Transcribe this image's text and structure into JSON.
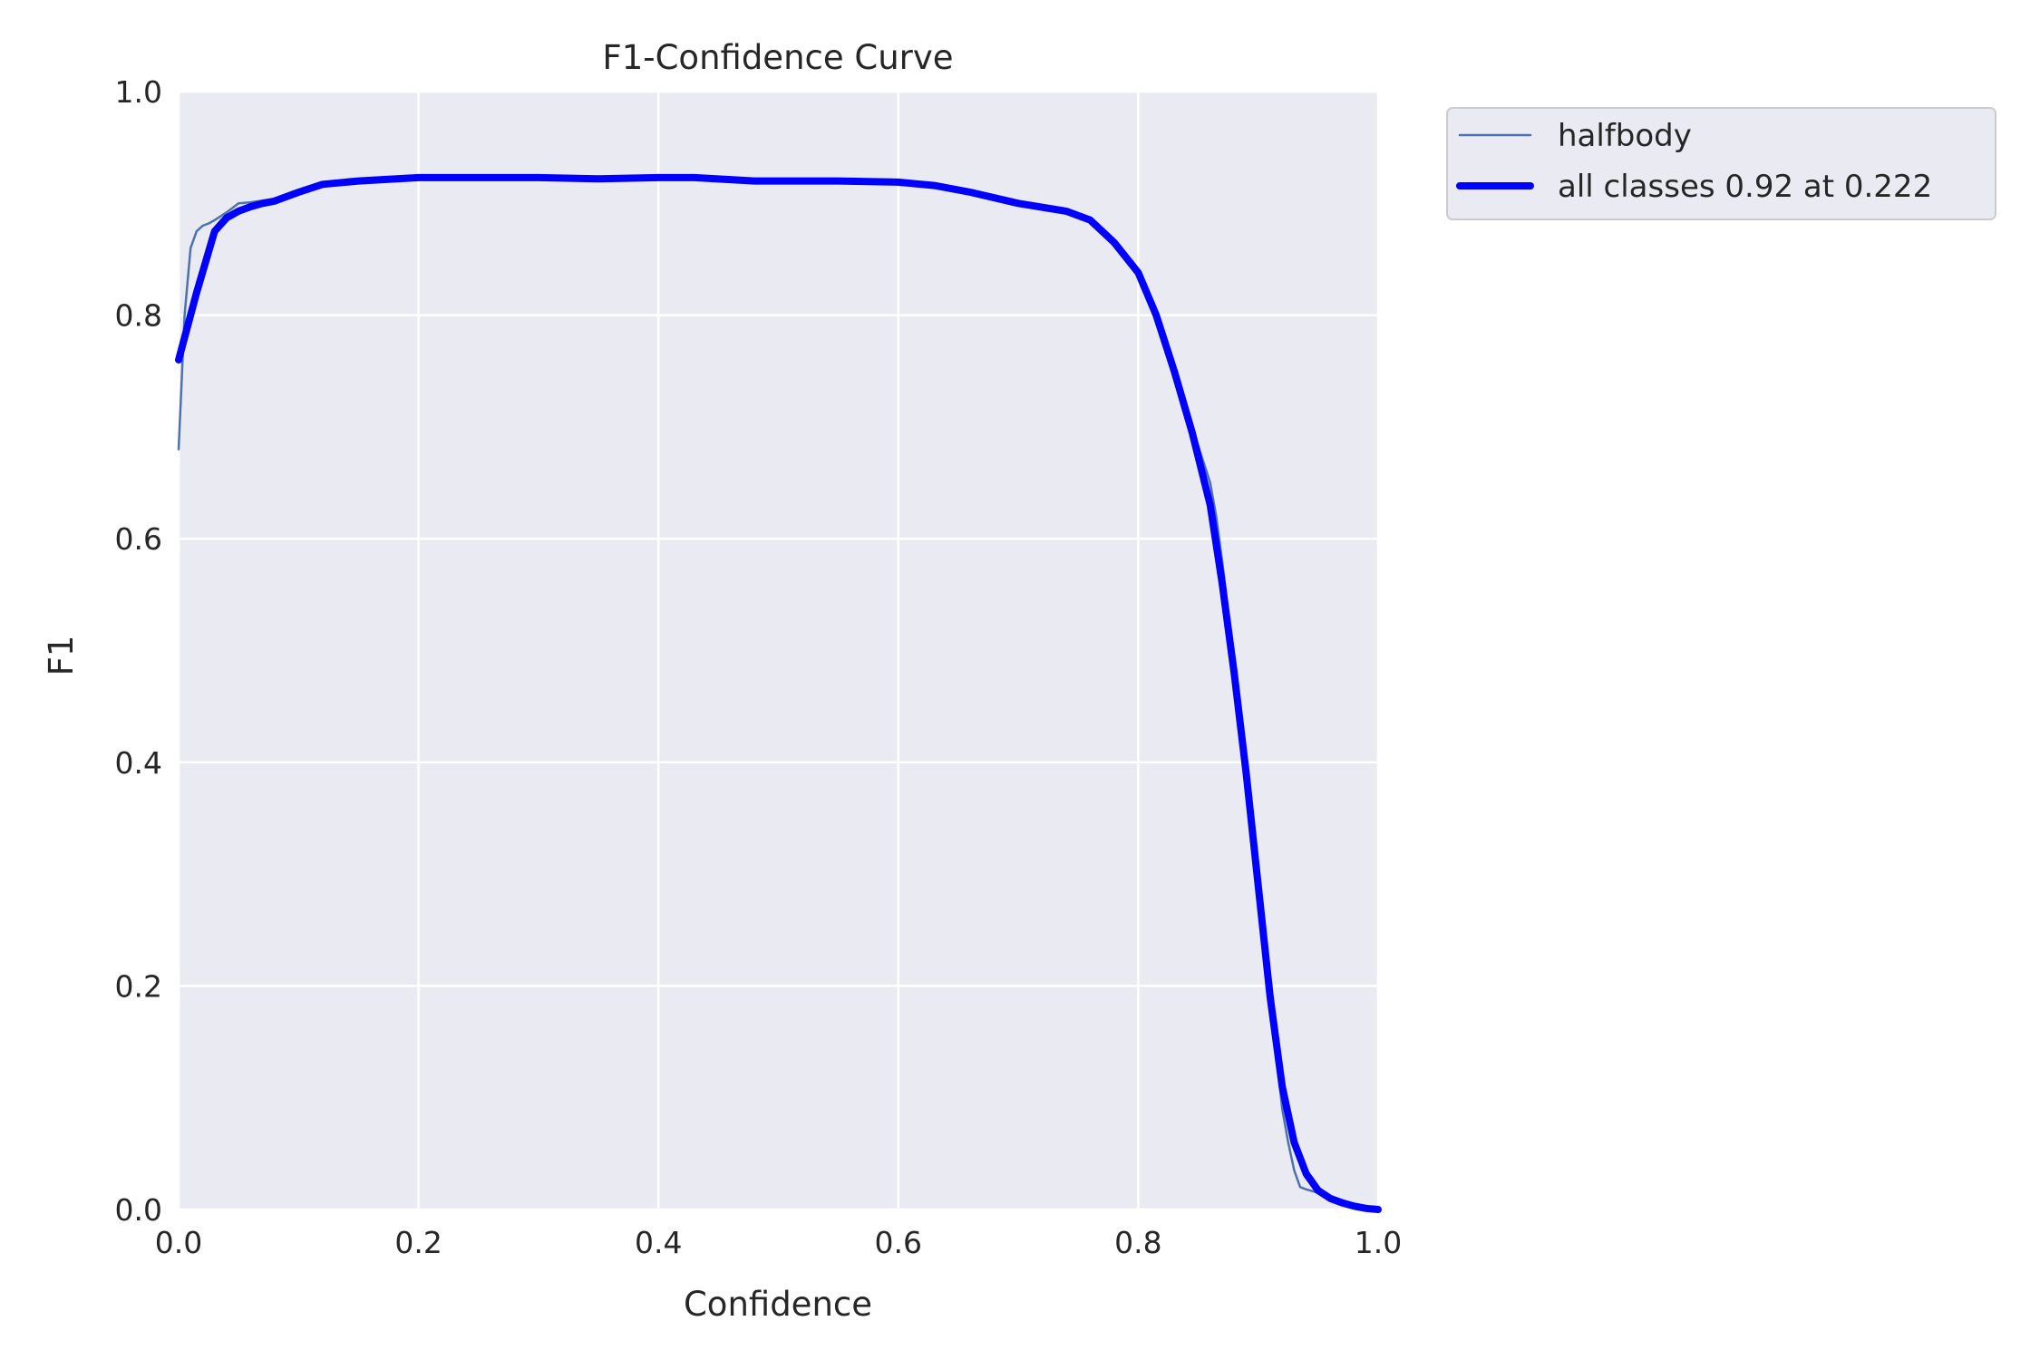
{
  "chart_data": {
    "type": "line",
    "title": "F1-Confidence Curve",
    "xlabel": "Confidence",
    "ylabel": "F1",
    "xlim": [
      0,
      1
    ],
    "ylim": [
      0,
      1
    ],
    "xticks": [
      0.0,
      0.2,
      0.4,
      0.6,
      0.8,
      1.0
    ],
    "yticks": [
      0.0,
      0.2,
      0.4,
      0.6,
      0.8,
      1.0
    ],
    "xtick_labels": [
      "0.0",
      "0.2",
      "0.4",
      "0.6",
      "0.8",
      "1.0"
    ],
    "ytick_labels": [
      "0.0",
      "0.2",
      "0.4",
      "0.6",
      "0.8",
      "1.0"
    ],
    "grid": true,
    "legend_position": "outside upper-right",
    "series": [
      {
        "name": "halfbody",
        "color": "#4c72b0",
        "style": "thin",
        "x": [
          0.0,
          0.005,
          0.01,
          0.015,
          0.02,
          0.025,
          0.03,
          0.04,
          0.05,
          0.06,
          0.08,
          0.1,
          0.12,
          0.15,
          0.2,
          0.25,
          0.3,
          0.35,
          0.4,
          0.43,
          0.48,
          0.55,
          0.6,
          0.63,
          0.66,
          0.7,
          0.74,
          0.755,
          0.77,
          0.785,
          0.8,
          0.815,
          0.83,
          0.845,
          0.86,
          0.865,
          0.87,
          0.88,
          0.89,
          0.9,
          0.91,
          0.915,
          0.92,
          0.925,
          0.93,
          0.935,
          0.94,
          0.95,
          0.96,
          0.97,
          0.98,
          1.0
        ],
        "y": [
          0.68,
          0.8,
          0.86,
          0.875,
          0.88,
          0.882,
          0.885,
          0.892,
          0.9,
          0.901,
          0.904,
          0.91,
          0.917,
          0.92,
          0.923,
          0.923,
          0.923,
          0.922,
          0.923,
          0.923,
          0.92,
          0.92,
          0.919,
          0.916,
          0.91,
          0.9,
          0.893,
          0.888,
          0.875,
          0.86,
          0.838,
          0.8,
          0.75,
          0.7,
          0.65,
          0.62,
          0.58,
          0.49,
          0.4,
          0.3,
          0.2,
          0.14,
          0.09,
          0.06,
          0.035,
          0.02,
          0.018,
          0.015,
          0.012,
          0.006,
          0.004,
          0.0
        ]
      },
      {
        "name": "all classes 0.92 at 0.222",
        "color": "#0000ff",
        "style": "thick",
        "x": [
          0.0,
          0.015,
          0.03,
          0.04,
          0.05,
          0.06,
          0.07,
          0.08,
          0.1,
          0.12,
          0.15,
          0.2,
          0.25,
          0.3,
          0.35,
          0.4,
          0.43,
          0.48,
          0.55,
          0.6,
          0.63,
          0.66,
          0.7,
          0.74,
          0.76,
          0.78,
          0.8,
          0.815,
          0.83,
          0.845,
          0.86,
          0.87,
          0.88,
          0.89,
          0.9,
          0.91,
          0.92,
          0.93,
          0.94,
          0.95,
          0.96,
          0.97,
          0.98,
          0.99,
          1.0
        ],
        "y": [
          0.76,
          0.82,
          0.875,
          0.887,
          0.893,
          0.897,
          0.9,
          0.902,
          0.91,
          0.917,
          0.92,
          0.923,
          0.923,
          0.923,
          0.922,
          0.923,
          0.923,
          0.92,
          0.92,
          0.919,
          0.916,
          0.91,
          0.9,
          0.893,
          0.885,
          0.865,
          0.838,
          0.8,
          0.75,
          0.695,
          0.63,
          0.56,
          0.48,
          0.39,
          0.29,
          0.19,
          0.11,
          0.06,
          0.032,
          0.017,
          0.01,
          0.006,
          0.003,
          0.001,
          0.0
        ]
      }
    ]
  }
}
